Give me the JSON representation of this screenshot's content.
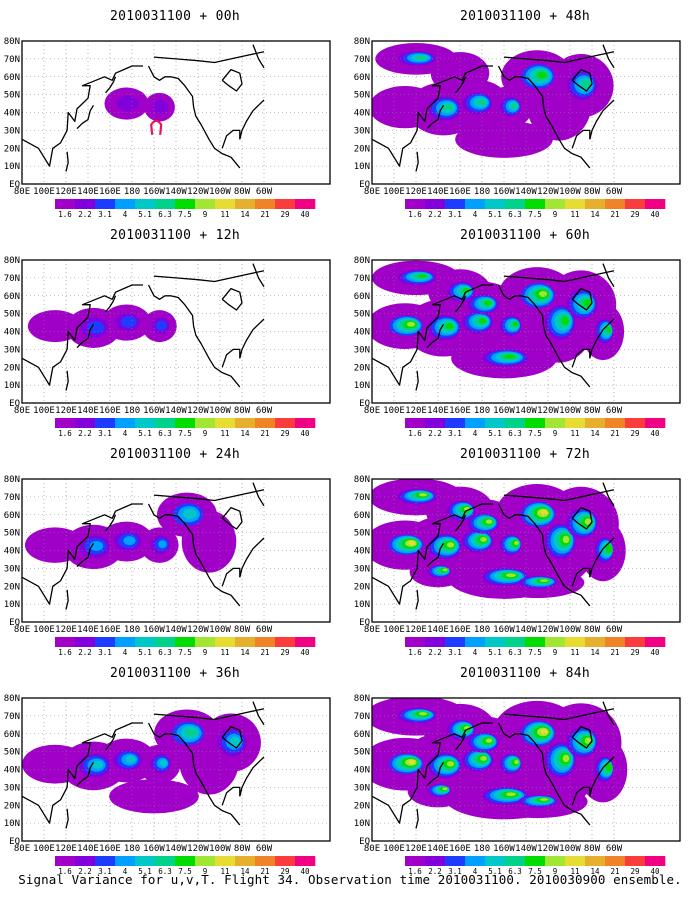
{
  "figure": {
    "caption": "Signal Variance for u,v,T. Flight 34. Observation time 2010031100. 2010030900 ensemble."
  },
  "map": {
    "lon_labels": [
      "80E",
      "100E",
      "120E",
      "140E",
      "160E",
      "180",
      "160W",
      "140W",
      "120W",
      "100W",
      "80W",
      "60W"
    ],
    "lat_labels": [
      "EQ",
      "10N",
      "20N",
      "30N",
      "40N",
      "50N",
      "60N",
      "70N",
      "80N"
    ],
    "colorbar_levels": [
      "1.6",
      "2.2",
      "3.1",
      "4",
      "5.1",
      "6.3",
      "7.5",
      "9",
      "11",
      "14",
      "21",
      "29",
      "40"
    ],
    "colorbar_colors": [
      "#a000c8",
      "#8200dc",
      "#1e3cff",
      "#00a0ff",
      "#00c8c8",
      "#00d28c",
      "#00dc00",
      "#a0e632",
      "#e6dc32",
      "#e6af2d",
      "#f08228",
      "#fa3c3c",
      "#f00082"
    ]
  },
  "panels": [
    {
      "title": "2010031100 + 00h",
      "lead_hours": 0,
      "observation_marker": "red-loop",
      "intensity": 0
    },
    {
      "title": "2010031100 + 12h",
      "lead_hours": 12,
      "intensity": 1
    },
    {
      "title": "2010031100 + 24h",
      "lead_hours": 24,
      "intensity": 2
    },
    {
      "title": "2010031100 + 36h",
      "lead_hours": 36,
      "intensity": 3
    },
    {
      "title": "2010031100 + 48h",
      "lead_hours": 48,
      "intensity": 4
    },
    {
      "title": "2010031100 + 60h",
      "lead_hours": 60,
      "intensity": 5
    },
    {
      "title": "2010031100 + 72h",
      "lead_hours": 72,
      "intensity": 6
    },
    {
      "title": "2010031100 + 84h",
      "lead_hours": 84,
      "intensity": 7
    }
  ]
}
